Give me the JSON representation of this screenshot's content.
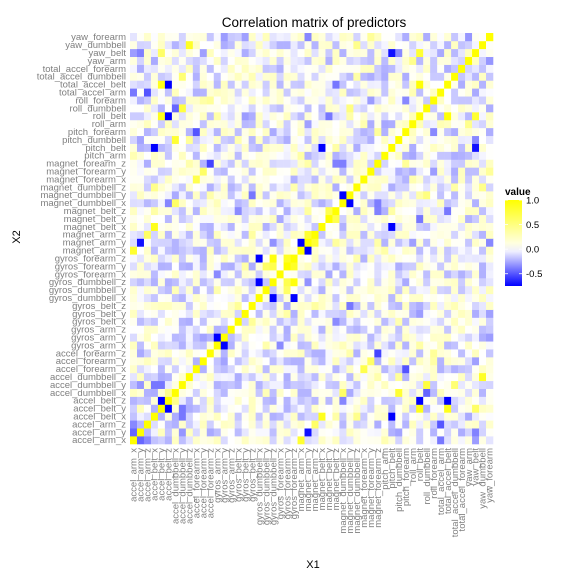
{
  "chart_data": {
    "type": "heatmap",
    "title": "Correlation matrix of predictors",
    "xlabel": "X1",
    "ylabel": "X2",
    "variables": [
      "accel_arm_x",
      "accel_arm_y",
      "accel_arm_z",
      "accel_belt_x",
      "accel_belt_y",
      "accel_belt_z",
      "accel_dumbbell_x",
      "accel_dumbbell_y",
      "accel_dumbbell_z",
      "accel_forearm_x",
      "accel_forearm_y",
      "accel_forearm_z",
      "gyros_arm_x",
      "gyros_arm_y",
      "gyros_arm_z",
      "gyros_belt_x",
      "gyros_belt_y",
      "gyros_belt_z",
      "gyros_dumbbell_x",
      "gyros_dumbbell_y",
      "gyros_dumbbell_z",
      "gyros_forearm_x",
      "gyros_forearm_y",
      "gyros_forearm_z",
      "magnet_arm_x",
      "magnet_arm_y",
      "magnet_arm_z",
      "magnet_belt_x",
      "magnet_belt_y",
      "magnet_belt_z",
      "magnet_dumbbell_x",
      "magnet_dumbbell_y",
      "magnet_dumbbell_z",
      "magnet_forearm_x",
      "magnet_forearm_y",
      "magnet_forearm_z",
      "pitch_arm",
      "pitch_belt",
      "pitch_dumbbell",
      "pitch_forearm",
      "roll_arm",
      "roll_belt",
      "roll_dumbbell",
      "roll_forearm",
      "total_accel_arm",
      "total_accel_belt",
      "total_accel_dumbbell",
      "total_accel_forearm",
      "yaw_arm",
      "yaw_belt",
      "yaw_dumbbell",
      "yaw_forearm"
    ],
    "notable_correlations": [
      {
        "a": "gyros_dumbbell_x",
        "b": "gyros_dumbbell_z",
        "value": -0.9
      },
      {
        "a": "gyros_dumbbell_x",
        "b": "gyros_forearm_z",
        "value": -0.9
      },
      {
        "a": "gyros_dumbbell_z",
        "b": "gyros_forearm_z",
        "value": 0.95
      },
      {
        "a": "gyros_forearm_y",
        "b": "gyros_forearm_z",
        "value": 0.85
      },
      {
        "a": "gyros_dumbbell_z",
        "b": "gyros_forearm_y",
        "value": 0.7
      },
      {
        "a": "gyros_dumbbell_y",
        "b": "gyros_forearm_y",
        "value": 0.6
      },
      {
        "a": "accel_arm_x",
        "b": "magnet_arm_x",
        "value": 0.8
      },
      {
        "a": "accel_arm_y",
        "b": "magnet_arm_y",
        "value": -0.7
      },
      {
        "a": "accel_arm_z",
        "b": "magnet_arm_z",
        "value": 0.6
      },
      {
        "a": "magnet_arm_x",
        "b": "magnet_arm_y",
        "value": -0.75
      },
      {
        "a": "magnet_arm_y",
        "b": "magnet_arm_z",
        "value": 0.8
      },
      {
        "a": "accel_belt_x",
        "b": "magnet_belt_x",
        "value": 0.9
      },
      {
        "a": "accel_belt_x",
        "b": "pitch_belt",
        "value": -0.95
      },
      {
        "a": "accel_belt_y",
        "b": "accel_belt_z",
        "value": -0.95
      },
      {
        "a": "accel_belt_y",
        "b": "roll_belt",
        "value": 0.9
      },
      {
        "a": "accel_belt_z",
        "b": "roll_belt",
        "value": -0.95
      },
      {
        "a": "accel_belt_y",
        "b": "total_accel_belt",
        "value": 0.9
      },
      {
        "a": "accel_belt_z",
        "b": "total_accel_belt",
        "value": -0.95
      },
      {
        "a": "roll_belt",
        "b": "total_accel_belt",
        "value": 0.98
      },
      {
        "a": "roll_belt",
        "b": "yaw_belt",
        "value": 0.8
      },
      {
        "a": "accel_belt_y",
        "b": "yaw_belt",
        "value": 0.6
      },
      {
        "a": "magnet_belt_x",
        "b": "pitch_belt",
        "value": -0.85
      },
      {
        "a": "magnet_belt_y",
        "b": "magnet_belt_z",
        "value": 0.7
      },
      {
        "a": "gyros_arm_x",
        "b": "gyros_arm_y",
        "value": -0.9
      },
      {
        "a": "gyros_belt_x",
        "b": "gyros_belt_z",
        "value": 0.4
      },
      {
        "a": "accel_dumbbell_x",
        "b": "pitch_dumbbell",
        "value": 0.8
      },
      {
        "a": "accel_dumbbell_z",
        "b": "yaw_dumbbell",
        "value": 0.85
      },
      {
        "a": "accel_dumbbell_y",
        "b": "roll_dumbbell",
        "value": 0.75
      },
      {
        "a": "accel_dumbbell_y",
        "b": "total_accel_dumbbell",
        "value": 0.55
      },
      {
        "a": "accel_dumbbell_x",
        "b": "magnet_dumbbell_x",
        "value": 0.6
      },
      {
        "a": "magnet_dumbbell_x",
        "b": "magnet_dumbbell_y",
        "value": -0.8
      },
      {
        "a": "accel_forearm_x",
        "b": "magnet_forearm_x",
        "value": 0.7
      },
      {
        "a": "accel_forearm_y",
        "b": "magnet_forearm_y",
        "value": 0.6
      },
      {
        "a": "accel_forearm_z",
        "b": "magnet_forearm_z",
        "value": -0.55
      },
      {
        "a": "accel_arm_x",
        "b": "accel_arm_y",
        "value": -0.45
      },
      {
        "a": "accel_arm_x",
        "b": "accel_arm_z",
        "value": -0.35
      },
      {
        "a": "accel_belt_x",
        "b": "accel_dumbbell_y",
        "value": -0.4
      },
      {
        "a": "accel_belt_z",
        "b": "accel_dumbbell_x",
        "value": 0.45
      },
      {
        "a": "accel_belt_y",
        "b": "accel_dumbbell_y",
        "value": -0.4
      },
      {
        "a": "accel_belt_x",
        "b": "magnet_dumbbell_z",
        "value": 0.45
      },
      {
        "a": "accel_arm_x",
        "b": "pitch_arm",
        "value": 0.3
      },
      {
        "a": "magnet_arm_x",
        "b": "pitch_arm",
        "value": 0.35
      },
      {
        "a": "roll_arm",
        "b": "yaw_arm",
        "value": 0.45
      },
      {
        "a": "accel_forearm_x",
        "b": "pitch_forearm",
        "value": -0.5
      },
      {
        "a": "accel_forearm_z",
        "b": "roll_forearm",
        "value": 0.4
      },
      {
        "a": "magnet_forearm_y",
        "b": "yaw_forearm",
        "value": 0.4
      },
      {
        "a": "pitch_forearm",
        "b": "roll_forearm",
        "value": -0.35
      },
      {
        "a": "accel_forearm_y",
        "b": "roll_forearm",
        "value": 0.35
      },
      {
        "a": "gyros_arm_x",
        "b": "accel_arm_x",
        "value": 0.25
      },
      {
        "a": "magnet_belt_z",
        "b": "total_accel_belt",
        "value": -0.4
      },
      {
        "a": "magnet_belt_y",
        "b": "roll_belt",
        "value": -0.4
      },
      {
        "a": "magnet_belt_z",
        "b": "pitch_belt",
        "value": 0.35
      },
      {
        "a": "accel_dumbbell_z",
        "b": "pitch_dumbbell",
        "value": 0.4
      },
      {
        "a": "magnet_dumbbell_y",
        "b": "roll_dumbbell",
        "value": 0.5
      },
      {
        "a": "magnet_dumbbell_z",
        "b": "yaw_dumbbell",
        "value": 0.45
      },
      {
        "a": "accel_arm_z",
        "b": "total_accel_arm",
        "value": -0.5
      },
      {
        "a": "accel_arm_x",
        "b": "total_accel_arm",
        "value": -0.4
      },
      {
        "a": "magnet_forearm_z",
        "b": "pitch_forearm",
        "value": 0.4
      },
      {
        "a": "accel_dumbbell_x",
        "b": "roll_dumbbell",
        "value": -0.45
      },
      {
        "a": "pitch_belt",
        "b": "yaw_belt",
        "value": -0.7
      }
    ],
    "diagonal_value": 1.0,
    "color_scale": {
      "low": "#0000ff",
      "mid": "#ffffff",
      "high": "#ffff00",
      "min": -0.75,
      "max": 1.0
    },
    "legend": {
      "title": "value",
      "position": "right",
      "ticks": [
        {
          "value": 1.0,
          "label": "1.0"
        },
        {
          "value": 0.5,
          "label": "0.5"
        },
        {
          "value": 0.0,
          "label": "0.0"
        },
        {
          "value": -0.5,
          "label": "-0.5"
        }
      ]
    },
    "grid": false
  }
}
